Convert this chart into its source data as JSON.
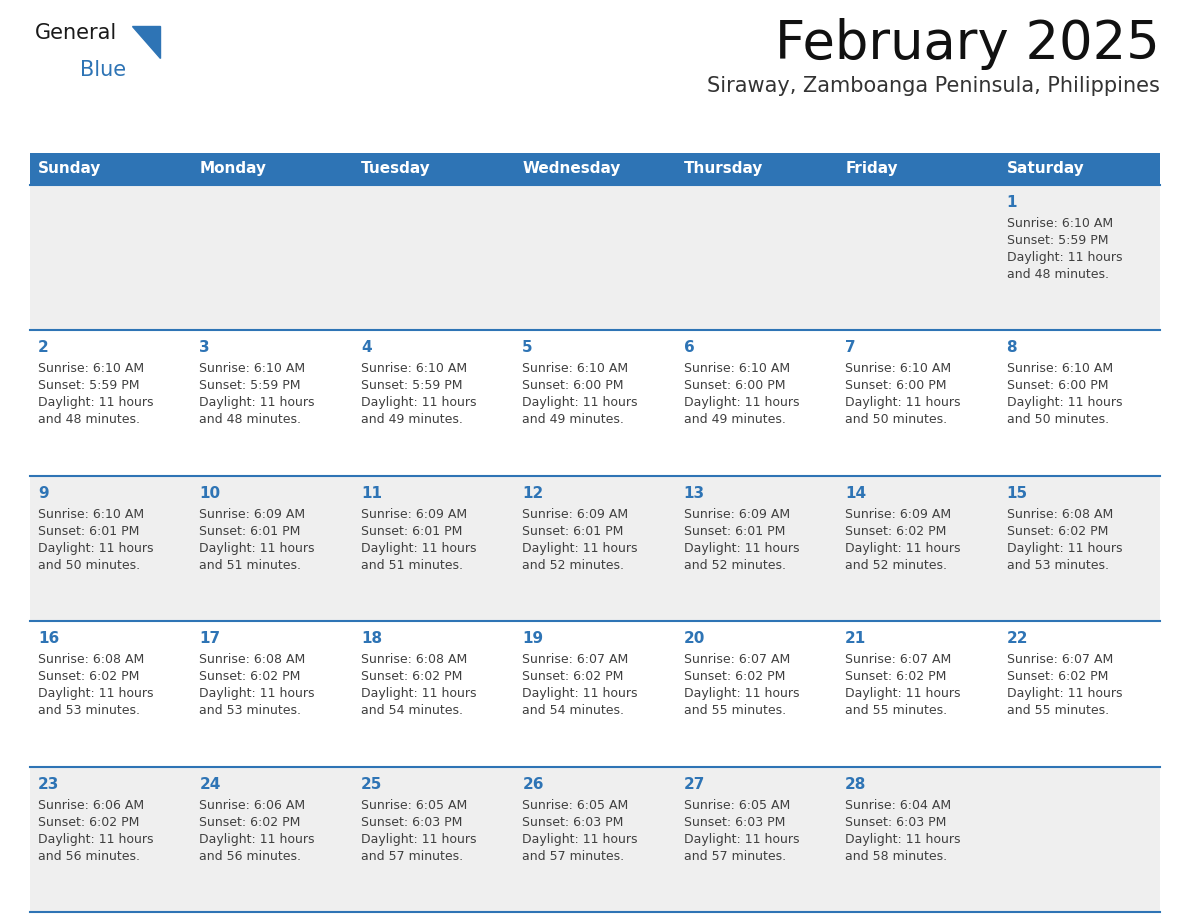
{
  "title": "February 2025",
  "subtitle": "Siraway, Zamboanga Peninsula, Philippines",
  "header_bg": "#2E74B5",
  "header_text_color": "#FFFFFF",
  "cell_bg_odd": "#EFEFEF",
  "cell_bg_even": "#FFFFFF",
  "day_number_color": "#2E74B5",
  "info_text_color": "#404040",
  "days_of_week": [
    "Sunday",
    "Monday",
    "Tuesday",
    "Wednesday",
    "Thursday",
    "Friday",
    "Saturday"
  ],
  "num_cols": 7,
  "num_rows": 5,
  "weeks": [
    [
      {
        "day": null,
        "sunrise": null,
        "sunset": null,
        "daylight": null
      },
      {
        "day": null,
        "sunrise": null,
        "sunset": null,
        "daylight": null
      },
      {
        "day": null,
        "sunrise": null,
        "sunset": null,
        "daylight": null
      },
      {
        "day": null,
        "sunrise": null,
        "sunset": null,
        "daylight": null
      },
      {
        "day": null,
        "sunrise": null,
        "sunset": null,
        "daylight": null
      },
      {
        "day": null,
        "sunrise": null,
        "sunset": null,
        "daylight": null
      },
      {
        "day": 1,
        "sunrise": "6:10 AM",
        "sunset": "5:59 PM",
        "daylight": "11 hours\nand 48 minutes."
      }
    ],
    [
      {
        "day": 2,
        "sunrise": "6:10 AM",
        "sunset": "5:59 PM",
        "daylight": "11 hours\nand 48 minutes."
      },
      {
        "day": 3,
        "sunrise": "6:10 AM",
        "sunset": "5:59 PM",
        "daylight": "11 hours\nand 48 minutes."
      },
      {
        "day": 4,
        "sunrise": "6:10 AM",
        "sunset": "5:59 PM",
        "daylight": "11 hours\nand 49 minutes."
      },
      {
        "day": 5,
        "sunrise": "6:10 AM",
        "sunset": "6:00 PM",
        "daylight": "11 hours\nand 49 minutes."
      },
      {
        "day": 6,
        "sunrise": "6:10 AM",
        "sunset": "6:00 PM",
        "daylight": "11 hours\nand 49 minutes."
      },
      {
        "day": 7,
        "sunrise": "6:10 AM",
        "sunset": "6:00 PM",
        "daylight": "11 hours\nand 50 minutes."
      },
      {
        "day": 8,
        "sunrise": "6:10 AM",
        "sunset": "6:00 PM",
        "daylight": "11 hours\nand 50 minutes."
      }
    ],
    [
      {
        "day": 9,
        "sunrise": "6:10 AM",
        "sunset": "6:01 PM",
        "daylight": "11 hours\nand 50 minutes."
      },
      {
        "day": 10,
        "sunrise": "6:09 AM",
        "sunset": "6:01 PM",
        "daylight": "11 hours\nand 51 minutes."
      },
      {
        "day": 11,
        "sunrise": "6:09 AM",
        "sunset": "6:01 PM",
        "daylight": "11 hours\nand 51 minutes."
      },
      {
        "day": 12,
        "sunrise": "6:09 AM",
        "sunset": "6:01 PM",
        "daylight": "11 hours\nand 52 minutes."
      },
      {
        "day": 13,
        "sunrise": "6:09 AM",
        "sunset": "6:01 PM",
        "daylight": "11 hours\nand 52 minutes."
      },
      {
        "day": 14,
        "sunrise": "6:09 AM",
        "sunset": "6:02 PM",
        "daylight": "11 hours\nand 52 minutes."
      },
      {
        "day": 15,
        "sunrise": "6:08 AM",
        "sunset": "6:02 PM",
        "daylight": "11 hours\nand 53 minutes."
      }
    ],
    [
      {
        "day": 16,
        "sunrise": "6:08 AM",
        "sunset": "6:02 PM",
        "daylight": "11 hours\nand 53 minutes."
      },
      {
        "day": 17,
        "sunrise": "6:08 AM",
        "sunset": "6:02 PM",
        "daylight": "11 hours\nand 53 minutes."
      },
      {
        "day": 18,
        "sunrise": "6:08 AM",
        "sunset": "6:02 PM",
        "daylight": "11 hours\nand 54 minutes."
      },
      {
        "day": 19,
        "sunrise": "6:07 AM",
        "sunset": "6:02 PM",
        "daylight": "11 hours\nand 54 minutes."
      },
      {
        "day": 20,
        "sunrise": "6:07 AM",
        "sunset": "6:02 PM",
        "daylight": "11 hours\nand 55 minutes."
      },
      {
        "day": 21,
        "sunrise": "6:07 AM",
        "sunset": "6:02 PM",
        "daylight": "11 hours\nand 55 minutes."
      },
      {
        "day": 22,
        "sunrise": "6:07 AM",
        "sunset": "6:02 PM",
        "daylight": "11 hours\nand 55 minutes."
      }
    ],
    [
      {
        "day": 23,
        "sunrise": "6:06 AM",
        "sunset": "6:02 PM",
        "daylight": "11 hours\nand 56 minutes."
      },
      {
        "day": 24,
        "sunrise": "6:06 AM",
        "sunset": "6:02 PM",
        "daylight": "11 hours\nand 56 minutes."
      },
      {
        "day": 25,
        "sunrise": "6:05 AM",
        "sunset": "6:03 PM",
        "daylight": "11 hours\nand 57 minutes."
      },
      {
        "day": 26,
        "sunrise": "6:05 AM",
        "sunset": "6:03 PM",
        "daylight": "11 hours\nand 57 minutes."
      },
      {
        "day": 27,
        "sunrise": "6:05 AM",
        "sunset": "6:03 PM",
        "daylight": "11 hours\nand 57 minutes."
      },
      {
        "day": 28,
        "sunrise": "6:04 AM",
        "sunset": "6:03 PM",
        "daylight": "11 hours\nand 58 minutes."
      },
      {
        "day": null,
        "sunrise": null,
        "sunset": null,
        "daylight": null
      }
    ]
  ],
  "logo_general_color": "#1a1a1a",
  "logo_blue_color": "#2E74B5",
  "title_fontsize": 38,
  "subtitle_fontsize": 15,
  "header_fontsize": 11,
  "day_num_fontsize": 11,
  "info_fontsize": 9
}
